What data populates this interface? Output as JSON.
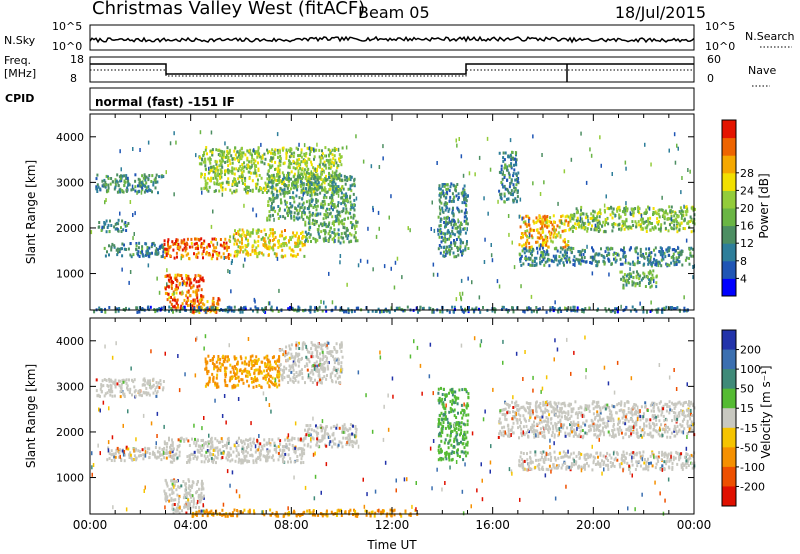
{
  "header": {
    "station": "Christmas Valley West (fitACF)",
    "beam": "Beam 05",
    "date": "18/Jul/2015"
  },
  "top_panels": {
    "nsky_label": "N.Sky",
    "nsearch_label": "N.Search",
    "nsky_tick_hi": "10^5",
    "nsky_tick_lo": "10^0",
    "nsearch_tick_hi": "10^5",
    "nsearch_tick_lo": "10^0",
    "freq_label": "Freq.",
    "freq_unit": "[MHz]",
    "freq_tick_hi": "18",
    "freq_tick_lo": "8",
    "nave_label": "Nave",
    "nave_tick_hi": "60",
    "nave_tick_lo": "0",
    "cpid_label": "CPID",
    "cpid_value": "normal (fast) -151 IF"
  },
  "chart_data": [
    {
      "type": "heatmap",
      "panel": "power",
      "ylabel": "Slant Range [km]",
      "yticks": [
        "1000",
        "2000",
        "3000",
        "4000"
      ],
      "ylim": [
        200,
        4500
      ],
      "xlim": [
        0,
        24
      ],
      "colorbar_label": "Power [dB]",
      "colorbar_ticks": [
        "4",
        "8",
        "12",
        "16",
        "20",
        "24",
        "28"
      ],
      "colorbar_colors": [
        "#0000ff",
        "#1f55b5",
        "#2e7e9a",
        "#4c8e62",
        "#6ab544",
        "#93cc3a",
        "#f2e000",
        "#f5a800",
        "#ee6400",
        "#e41400"
      ],
      "bands": [
        {
          "t0": 0.2,
          "t1": 2.9,
          "r0": 2800,
          "r1": 3200,
          "v": 10
        },
        {
          "t0": 0.5,
          "t1": 2.9,
          "r0": 1400,
          "r1": 1700,
          "v": 9
        },
        {
          "t0": 0.3,
          "t1": 1.5,
          "r0": 1950,
          "r1": 2200,
          "v": 9
        },
        {
          "t0": 2.9,
          "t1": 5.5,
          "r0": 1350,
          "r1": 1800,
          "v": 26
        },
        {
          "t0": 5.5,
          "t1": 8.5,
          "r0": 1400,
          "r1": 2000,
          "v": 20
        },
        {
          "t0": 8.5,
          "t1": 10.6,
          "r0": 1700,
          "r1": 2200,
          "v": 13
        },
        {
          "t0": 2.9,
          "t1": 4.5,
          "r0": 250,
          "r1": 1000,
          "v": 26
        },
        {
          "t0": 4.0,
          "t1": 5.2,
          "r0": 150,
          "r1": 500,
          "v": 24
        },
        {
          "t0": 4.3,
          "t1": 10.0,
          "r0": 2800,
          "r1": 3800,
          "v": 16
        },
        {
          "t0": 7.0,
          "t1": 10.5,
          "r0": 2200,
          "r1": 3200,
          "v": 12
        },
        {
          "t0": 13.8,
          "t1": 15.0,
          "r0": 1400,
          "r1": 3000,
          "v": 10
        },
        {
          "t0": 16.2,
          "t1": 17.0,
          "r0": 2600,
          "r1": 3700,
          "v": 9
        },
        {
          "t0": 17.0,
          "t1": 19.0,
          "r0": 1600,
          "r1": 2300,
          "v": 22
        },
        {
          "t0": 19.0,
          "t1": 24.0,
          "r0": 1950,
          "r1": 2500,
          "v": 15
        },
        {
          "t0": 17.0,
          "t1": 24.0,
          "r0": 1200,
          "r1": 1600,
          "v": 9
        },
        {
          "t0": 21.0,
          "t1": 22.5,
          "r0": 700,
          "r1": 1100,
          "v": 13
        },
        {
          "t0": 0.0,
          "t1": 24.0,
          "r0": 180,
          "r1": 300,
          "v": 8
        }
      ]
    },
    {
      "type": "heatmap",
      "panel": "velocity",
      "xlabel": "Time UT",
      "ylabel": "Slant Range [km]",
      "yticks": [
        "1000",
        "2000",
        "3000",
        "4000"
      ],
      "xticks": [
        "00:00",
        "04:00",
        "08:00",
        "12:00",
        "16:00",
        "20:00",
        "00:00"
      ],
      "ylim": [
        200,
        4500
      ],
      "xlim": [
        0,
        24
      ],
      "colorbar_label": "Velocity [m s⁻¹]",
      "colorbar_ticks": [
        "200",
        "100",
        "50",
        "15",
        "-15",
        "-50",
        "-100",
        "-200"
      ],
      "colorbar_colors": [
        "#2233aa",
        "#3b6fb0",
        "#3f8a78",
        "#55bb33",
        "#c8c8c0",
        "#f5c400",
        "#f59000",
        "#ee5000",
        "#e01000"
      ],
      "bands": [
        {
          "t0": 0.2,
          "t1": 2.9,
          "r0": 2800,
          "r1": 3200,
          "v": 0
        },
        {
          "t0": 0.5,
          "t1": 2.9,
          "r0": 1400,
          "r1": 1700,
          "v": 0
        },
        {
          "t0": 2.9,
          "t1": 8.5,
          "r0": 1350,
          "r1": 1900,
          "v": 0
        },
        {
          "t0": 8.5,
          "t1": 10.6,
          "r0": 1700,
          "r1": 2200,
          "v": 0
        },
        {
          "t0": 2.9,
          "t1": 4.5,
          "r0": 250,
          "r1": 1000,
          "v": 0
        },
        {
          "t0": 4.5,
          "t1": 7.5,
          "r0": 3000,
          "r1": 3700,
          "v": -20
        },
        {
          "t0": 7.5,
          "t1": 10.0,
          "r0": 3100,
          "r1": 4000,
          "v": 0
        },
        {
          "t0": 13.8,
          "t1": 15.0,
          "r0": 1400,
          "r1": 3000,
          "v": 30
        },
        {
          "t0": 16.2,
          "t1": 24.0,
          "r0": 1900,
          "r1": 2700,
          "v": 0
        },
        {
          "t0": 17.0,
          "t1": 24.0,
          "r0": 1200,
          "r1": 1600,
          "v": 0
        },
        {
          "t0": 4.0,
          "t1": 13.0,
          "r0": 180,
          "r1": 320,
          "v": -60
        }
      ]
    }
  ]
}
